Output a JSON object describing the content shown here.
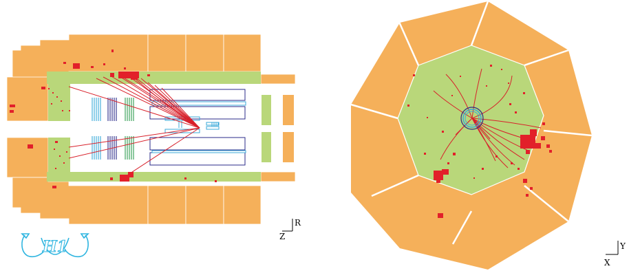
{
  "views": {
    "side": {
      "axis_h": "Z",
      "axis_v": "R"
    },
    "radial": {
      "axis_h": "X",
      "axis_v": "Y"
    }
  },
  "logo": {
    "name": "h1-experiment-logo",
    "text": "H1"
  },
  "colors": {
    "calorimeter_outer": "#F5B05A",
    "calorimeter_inner": "#B9D77A",
    "energy_deposit": "#E2202A",
    "track": "#D8202A",
    "tracker_blue": "#2A2A88",
    "tracker_cyan": "#3AA9D8",
    "tracker_green": "#2E9A4E",
    "logo": "#2FB5E0"
  }
}
